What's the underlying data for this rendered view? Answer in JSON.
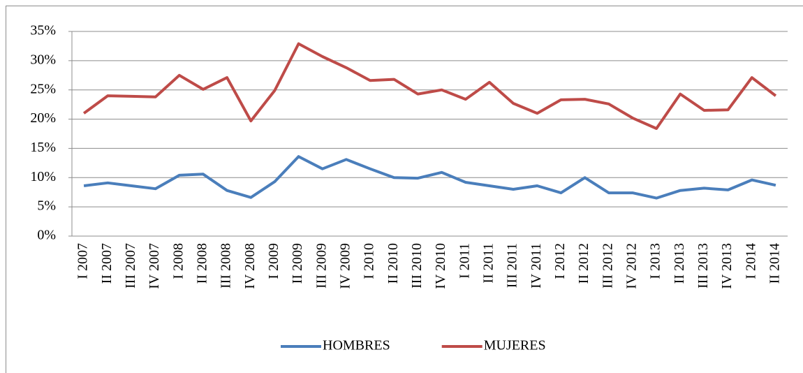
{
  "chart_data": {
    "type": "line",
    "categories": [
      "I 2007",
      "II 2007",
      "III 2007",
      "IV 2007",
      "I 2008",
      "II 2008",
      "III 2008",
      "IV 2008",
      "I 2009",
      "II 2009",
      "III 2009",
      "IV 2009",
      "I 2010",
      "II 2010",
      "III 2010",
      "IV 2010",
      "I 2011",
      "II 2011",
      "III 2011",
      "IV 2011",
      "I 2012",
      "II 2012",
      "III 2012",
      "IV 2012",
      "I 2013",
      "II 2013",
      "III 2013",
      "IV 2013",
      "I 2014",
      "II 2014"
    ],
    "series": [
      {
        "name": "HOMBRES",
        "color": "#4a7ebb",
        "values": [
          8.6,
          9.1,
          8.6,
          8.1,
          10.4,
          10.6,
          7.8,
          6.6,
          9.3,
          13.6,
          11.5,
          13.1,
          11.5,
          10.0,
          9.9,
          10.9,
          9.2,
          8.6,
          8.0,
          8.6,
          7.4,
          10.0,
          7.4,
          7.4,
          6.5,
          7.8,
          8.2,
          7.9,
          9.6,
          8.7
        ]
      },
      {
        "name": "MUJERES",
        "color": "#be4b48",
        "values": [
          21.0,
          24.0,
          23.9,
          23.8,
          27.5,
          25.1,
          27.1,
          19.7,
          24.9,
          32.9,
          30.7,
          28.8,
          26.6,
          26.8,
          24.3,
          25.0,
          23.4,
          26.3,
          22.7,
          21.0,
          23.3,
          23.4,
          22.6,
          20.2,
          18.4,
          24.3,
          21.5,
          21.6,
          27.1,
          24.0
        ]
      }
    ],
    "ylim": [
      0,
      35
    ],
    "yticks": [
      {
        "value": 0,
        "label": "0%"
      },
      {
        "value": 5,
        "label": "5%"
      },
      {
        "value": 10,
        "label": "10%"
      },
      {
        "value": 15,
        "label": "15%"
      },
      {
        "value": 20,
        "label": "20%"
      },
      {
        "value": 25,
        "label": "25%"
      },
      {
        "value": 30,
        "label": "30%"
      },
      {
        "value": 35,
        "label": "35%"
      }
    ],
    "grid": true,
    "legend": "bottom"
  }
}
